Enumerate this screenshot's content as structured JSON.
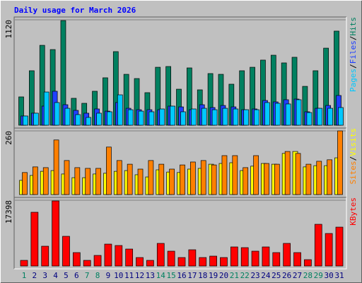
{
  "title": "Daily usage for March 2026",
  "legend_separator": "/",
  "chart_data": [
    {
      "type": "bar",
      "ylim": [
        0,
        1120
      ],
      "yticks": [
        1120
      ],
      "series": [
        {
          "name": "Hits",
          "color": "#008060",
          "values": [
            301,
            579,
            849,
            804,
            1112,
            286,
            233,
            361,
            504,
            782,
            541,
            496,
            346,
            616,
            624,
            383,
            609,
            376,
            549,
            541,
            436,
            579,
            616,
            692,
            744,
            662,
            722,
            413,
            579,
            819,
            1000
          ]
        },
        {
          "name": "Files",
          "color": "#2040ff",
          "values": [
            98,
            128,
            203,
            361,
            218,
            158,
            128,
            173,
            150,
            241,
            180,
            165,
            165,
            165,
            203,
            195,
            165,
            218,
            188,
            210,
            195,
            165,
            173,
            263,
            248,
            271,
            278,
            143,
            180,
            210,
            316
          ]
        },
        {
          "name": "Pages",
          "color": "#00c8ff",
          "values": [
            98,
            128,
            353,
            241,
            180,
            113,
            83,
            128,
            143,
            323,
            165,
            150,
            143,
            173,
            203,
            143,
            173,
            180,
            165,
            180,
            173,
            165,
            165,
            241,
            233,
            226,
            271,
            135,
            180,
            180,
            188
          ]
        }
      ]
    },
    {
      "type": "bar",
      "ylim": [
        0,
        260
      ],
      "yticks": [
        260
      ],
      "series": [
        {
          "name": "Visits",
          "color": "#ffff00",
          "values": [
            58,
            78,
            95,
            98,
            84,
            69,
            69,
            84,
            87,
            95,
            98,
            81,
            72,
            101,
            92,
            90,
            104,
            107,
            124,
            127,
            130,
            98,
            116,
            127,
            124,
            168,
            176,
            113,
            118,
            118,
            150
          ]
        },
        {
          "name": "Sites",
          "color": "#ff8000",
          "values": [
            90,
            113,
            110,
            223,
            139,
            110,
            107,
            107,
            194,
            139,
            124,
            104,
            139,
            124,
            104,
            121,
            133,
            139,
            121,
            159,
            159,
            110,
            159,
            127,
            124,
            176,
            168,
            124,
            136,
            142,
            260
          ]
        }
      ]
    },
    {
      "type": "bar",
      "ylim": [
        0,
        17398
      ],
      "yticks": [
        17398
      ],
      "categories": [
        "1",
        "2",
        "3",
        "4",
        "5",
        "6",
        "7",
        "8",
        "9",
        "10",
        "11",
        "12",
        "13",
        "14",
        "15",
        "16",
        "17",
        "18",
        "19",
        "20",
        "21",
        "22",
        "23",
        "24",
        "25",
        "26",
        "27",
        "28",
        "29",
        "30",
        "31"
      ],
      "category_colors": [
        "#008060",
        "#00007f",
        "#00007f",
        "#00007f",
        "#00007f",
        "#00007f",
        "#008060",
        "#008060",
        "#00007f",
        "#00007f",
        "#00007f",
        "#00007f",
        "#00007f",
        "#008060",
        "#008060",
        "#00007f",
        "#00007f",
        "#00007f",
        "#00007f",
        "#00007f",
        "#008060",
        "#008060",
        "#00007f",
        "#00007f",
        "#00007f",
        "#00007f",
        "#00007f",
        "#008060",
        "#008060",
        "#00007f",
        "#00007f"
      ],
      "series": [
        {
          "name": "KBytes",
          "color": "#ff0000",
          "values": [
            1496,
            14217,
            5236,
            17211,
            7856,
            3553,
            1496,
            2805,
            5797,
            5423,
            4488,
            2244,
            1496,
            5984,
            3928,
            2244,
            4301,
            2244,
            2618,
            2244,
            5050,
            4862,
            3928,
            5050,
            3553,
            5984,
            3553,
            1683,
            11034,
            8604,
            10286
          ]
        }
      ]
    }
  ]
}
